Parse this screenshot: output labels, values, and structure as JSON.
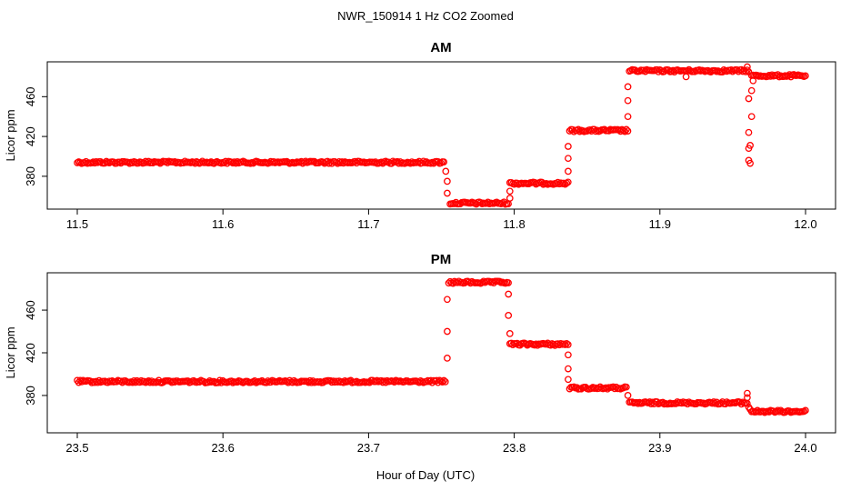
{
  "figure": {
    "title": "NWR_150914  1 Hz CO2 Zoomed",
    "xlabel": "Hour of Day (UTC)"
  },
  "colors": {
    "points": "#ff0000",
    "axes": "#000000",
    "background": "#ffffff"
  },
  "chart_data": [
    {
      "type": "scatter",
      "title": "AM",
      "xlabel": "",
      "ylabel": "Licor ppm",
      "xlim": [
        11.5,
        12.0
      ],
      "ylim": [
        347,
        495
      ],
      "xticks": [
        "11.5",
        "11.6",
        "11.7",
        "11.8",
        "11.9",
        "12.0"
      ],
      "xtick_values": [
        11.5,
        11.6,
        11.7,
        11.8,
        11.9,
        12.0
      ],
      "yticks": [
        "380",
        "420",
        "460"
      ],
      "ytick_values": [
        380,
        420,
        460
      ],
      "grid": false,
      "marker": "open-circle",
      "levels": [
        {
          "x_start": 11.5,
          "x_end": 11.752,
          "y": 394
        },
        {
          "x_start": 11.756,
          "x_end": 11.796,
          "y": 353
        },
        {
          "x_start": 11.797,
          "x_end": 11.837,
          "y": 373
        },
        {
          "x_start": 11.838,
          "x_end": 11.878,
          "y": 426
        },
        {
          "x_start": 11.879,
          "x_end": 11.961,
          "y": 486
        },
        {
          "x_start": 11.963,
          "x_end": 12.0,
          "y": 481
        }
      ],
      "transitions": [
        {
          "x": 11.753,
          "y": 385
        },
        {
          "x": 11.754,
          "y": 375
        },
        {
          "x": 11.754,
          "y": 363
        },
        {
          "x": 11.797,
          "y": 358
        },
        {
          "x": 11.797,
          "y": 365
        },
        {
          "x": 11.837,
          "y": 385
        },
        {
          "x": 11.837,
          "y": 398
        },
        {
          "x": 11.837,
          "y": 410
        },
        {
          "x": 11.878,
          "y": 440
        },
        {
          "x": 11.878,
          "y": 456
        },
        {
          "x": 11.878,
          "y": 470
        },
        {
          "x": 11.918,
          "y": 480
        },
        {
          "x": 11.96,
          "y": 490
        },
        {
          "x": 11.961,
          "y": 458
        },
        {
          "x": 11.961,
          "y": 424
        },
        {
          "x": 11.961,
          "y": 408
        },
        {
          "x": 11.961,
          "y": 396
        },
        {
          "x": 11.962,
          "y": 393
        },
        {
          "x": 11.962,
          "y": 411
        },
        {
          "x": 11.963,
          "y": 440
        },
        {
          "x": 11.963,
          "y": 466
        },
        {
          "x": 11.964,
          "y": 476
        }
      ]
    },
    {
      "type": "scatter",
      "title": "PM",
      "xlabel": "",
      "ylabel": "Licor ppm",
      "xlim": [
        23.5,
        24.0
      ],
      "ylim": [
        345,
        495
      ],
      "xticks": [
        "23.5",
        "23.6",
        "23.7",
        "23.8",
        "23.9",
        "24.0"
      ],
      "xtick_values": [
        23.5,
        23.6,
        23.7,
        23.8,
        23.9,
        24.0
      ],
      "yticks": [
        "380",
        "420",
        "460"
      ],
      "ytick_values": [
        380,
        420,
        460
      ],
      "grid": false,
      "marker": "open-circle",
      "levels": [
        {
          "x_start": 23.5,
          "x_end": 23.753,
          "y": 393
        },
        {
          "x_start": 23.755,
          "x_end": 23.796,
          "y": 486
        },
        {
          "x_start": 23.797,
          "x_end": 23.837,
          "y": 428
        },
        {
          "x_start": 23.838,
          "x_end": 23.877,
          "y": 387
        },
        {
          "x_start": 23.879,
          "x_end": 23.96,
          "y": 373
        },
        {
          "x_start": 23.963,
          "x_end": 24.0,
          "y": 365
        }
      ],
      "transitions": [
        {
          "x": 23.754,
          "y": 415
        },
        {
          "x": 23.754,
          "y": 440
        },
        {
          "x": 23.754,
          "y": 470
        },
        {
          "x": 23.796,
          "y": 475
        },
        {
          "x": 23.796,
          "y": 455
        },
        {
          "x": 23.797,
          "y": 438
        },
        {
          "x": 23.837,
          "y": 418
        },
        {
          "x": 23.837,
          "y": 405
        },
        {
          "x": 23.837,
          "y": 395
        },
        {
          "x": 23.878,
          "y": 380
        },
        {
          "x": 23.96,
          "y": 382
        },
        {
          "x": 23.96,
          "y": 378
        },
        {
          "x": 23.961,
          "y": 369
        },
        {
          "x": 23.962,
          "y": 367
        }
      ]
    }
  ]
}
